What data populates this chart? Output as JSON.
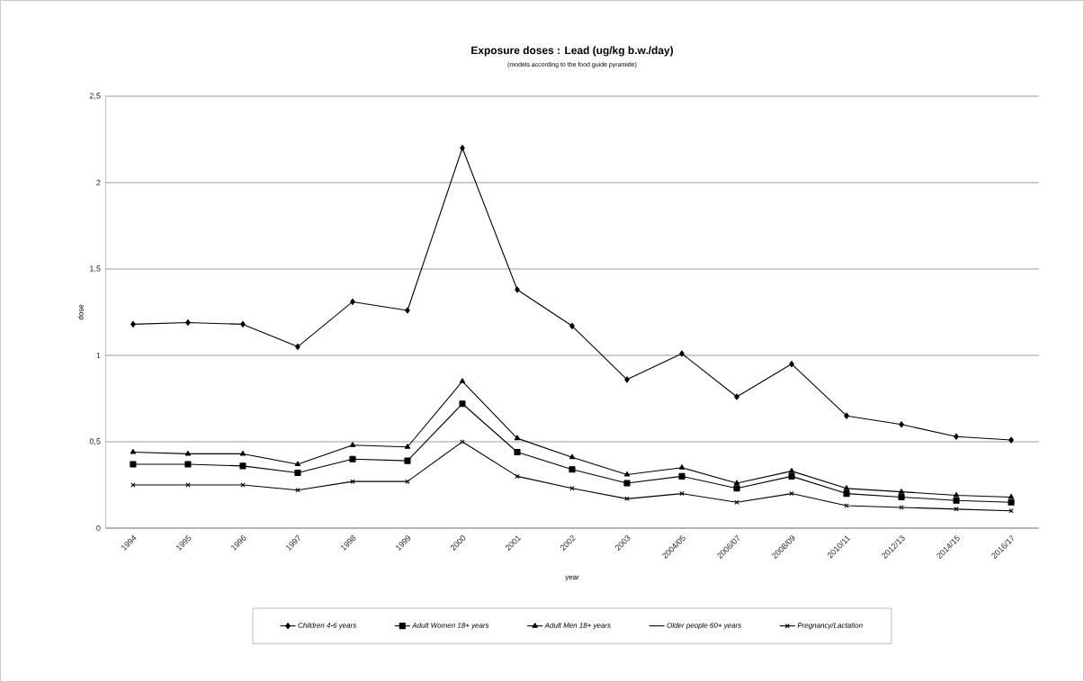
{
  "chart_data": {
    "type": "line",
    "title": "Exposure doses : Lead (ug/kg b.w./day)",
    "subtitle": "(models according to the food guide pyramide)",
    "xlabel": "year",
    "ylabel": "dose",
    "categories": [
      "1994",
      "1995",
      "1996",
      "1997",
      "1998",
      "1999",
      "2000",
      "2001",
      "2002",
      "2003",
      "2004/05",
      "2006/07",
      "2008/09",
      "2010/11",
      "2012/13",
      "2014/15",
      "2016/17"
    ],
    "series": [
      {
        "name": "Children 4-6 years",
        "color": "#000000",
        "marker": "diamond",
        "values": [
          1.18,
          1.19,
          1.18,
          1.05,
          1.31,
          1.26,
          2.2,
          1.38,
          1.17,
          0.86,
          1.01,
          0.76,
          0.95,
          0.65,
          0.6,
          0.53,
          0.51
        ]
      },
      {
        "name": "Adult Women 18+ years",
        "color": "#000000",
        "marker": "square",
        "values": [
          0.37,
          0.37,
          0.36,
          0.32,
          0.4,
          0.39,
          0.72,
          0.44,
          0.34,
          0.26,
          0.3,
          0.23,
          0.3,
          0.2,
          0.18,
          0.16,
          0.15
        ]
      },
      {
        "name": "Adult Men 18+ years",
        "color": "#000000",
        "marker": "triangle",
        "values": [
          0.44,
          0.43,
          0.43,
          0.37,
          0.48,
          0.47,
          0.85,
          0.52,
          0.41,
          0.31,
          0.35,
          0.26,
          0.33,
          0.23,
          0.21,
          0.19,
          0.18
        ]
      },
      {
        "name": "Older people 60+ years",
        "color": "#000000",
        "marker": "none",
        "values": [
          null,
          null,
          null,
          null,
          null,
          null,
          null,
          null,
          null,
          null,
          null,
          null,
          null,
          null,
          null,
          null,
          null
        ]
      },
      {
        "name": "Pregnancy/Lactation",
        "color": "#000000",
        "marker": "cross",
        "values": [
          0.25,
          0.25,
          0.25,
          0.22,
          0.27,
          0.27,
          0.5,
          0.3,
          0.23,
          0.17,
          0.2,
          0.15,
          0.2,
          0.13,
          0.12,
          0.11,
          0.1
        ]
      }
    ],
    "ylim": [
      0,
      2.5
    ],
    "yticks": [
      {
        "value": 0,
        "label": "0"
      },
      {
        "value": 0.5,
        "label": "0,5"
      },
      {
        "value": 1,
        "label": "1"
      },
      {
        "value": 1.5,
        "label": "1,5"
      },
      {
        "value": 2,
        "label": "2"
      },
      {
        "value": 2.5,
        "label": "2,5"
      }
    ],
    "grid": "y",
    "legend": "bottom"
  }
}
